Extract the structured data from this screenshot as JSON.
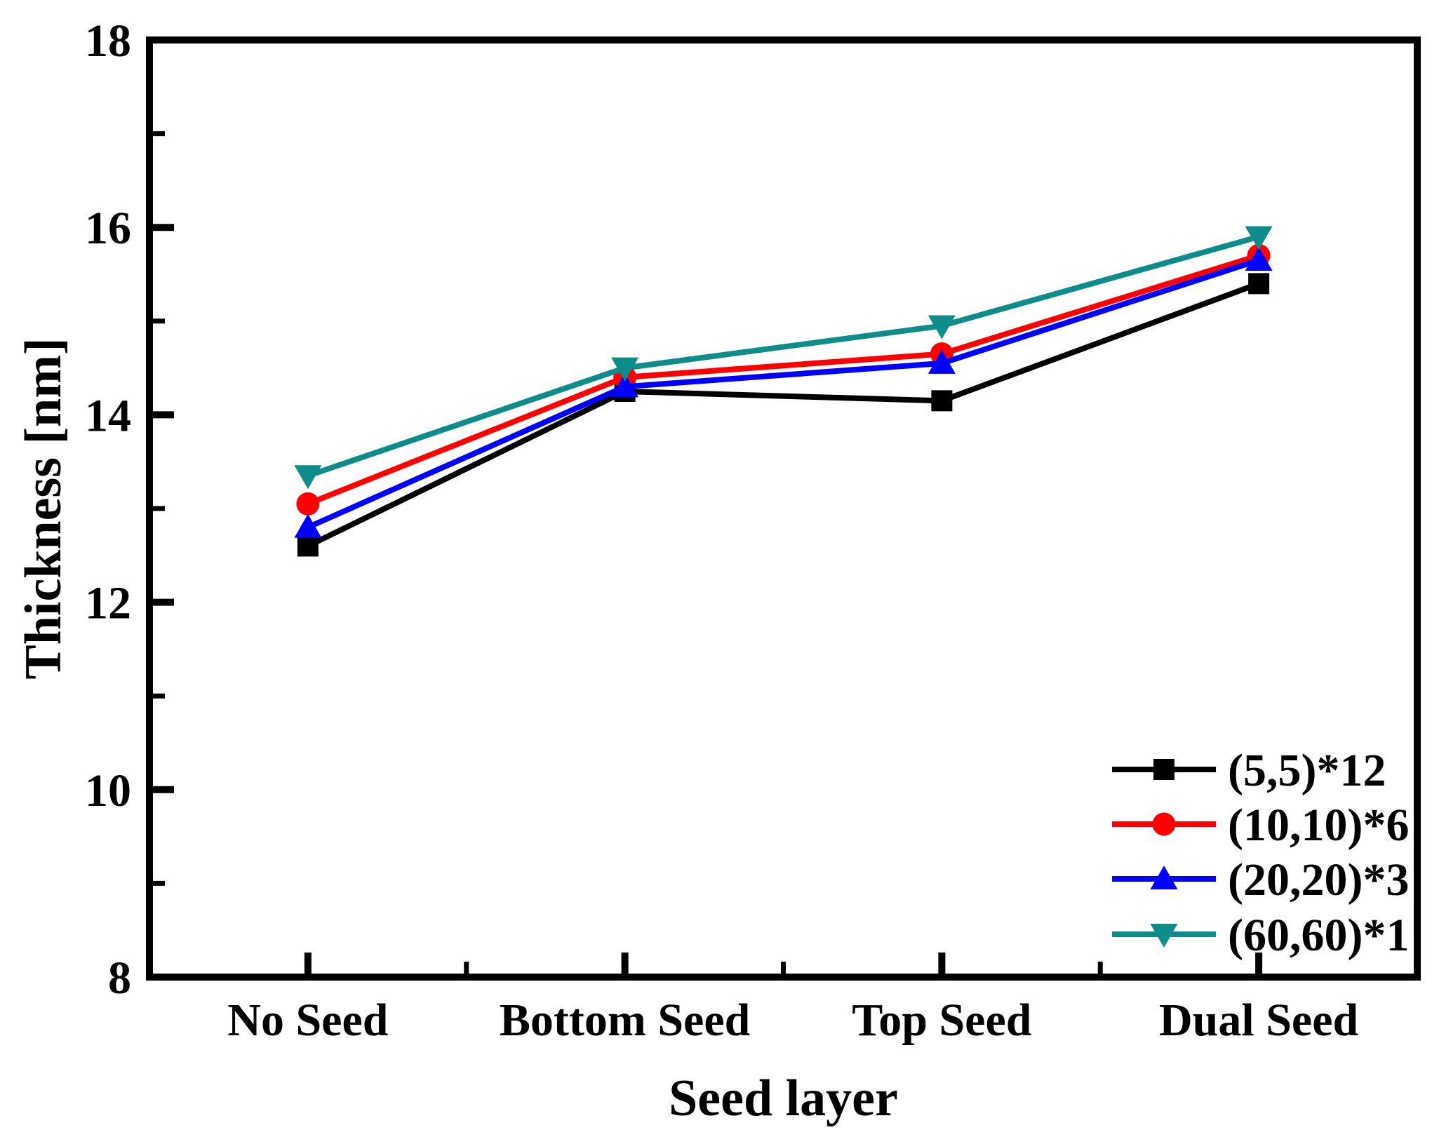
{
  "chart_data": {
    "type": "line",
    "title": "",
    "xlabel": "Seed layer",
    "ylabel": "Thickness [nm]",
    "categories": [
      "No Seed",
      "Bottom Seed",
      "Top Seed",
      "Dual Seed"
    ],
    "y_axis": {
      "min": 8,
      "max": 18,
      "major_step": 2,
      "minor_step": 1,
      "major_tick_labels": [
        "8",
        "10",
        "12",
        "14",
        "16",
        "18"
      ]
    },
    "x_axis": {
      "type": "category",
      "minor_ticks_between_categories": true
    },
    "grid": false,
    "legend_position": "inside-bottom-right",
    "series": [
      {
        "name": "(5,5)*12",
        "color": "#000000",
        "marker": "square",
        "values": [
          12.6,
          14.25,
          14.15,
          15.4
        ]
      },
      {
        "name": "(10,10)*6",
        "color": "#ff0000",
        "marker": "circle",
        "values": [
          13.05,
          14.4,
          14.65,
          15.7
        ]
      },
      {
        "name": "(20,20)*3",
        "color": "#0000ff",
        "marker": "triangle-up",
        "values": [
          12.8,
          14.3,
          14.55,
          15.65
        ]
      },
      {
        "name": "(60,60)*1",
        "color": "#0e8c8c",
        "marker": "triangle-down",
        "values": [
          13.35,
          14.5,
          14.95,
          15.9
        ]
      }
    ],
    "colors": {
      "axis": "#000000",
      "background": "#ffffff"
    }
  }
}
